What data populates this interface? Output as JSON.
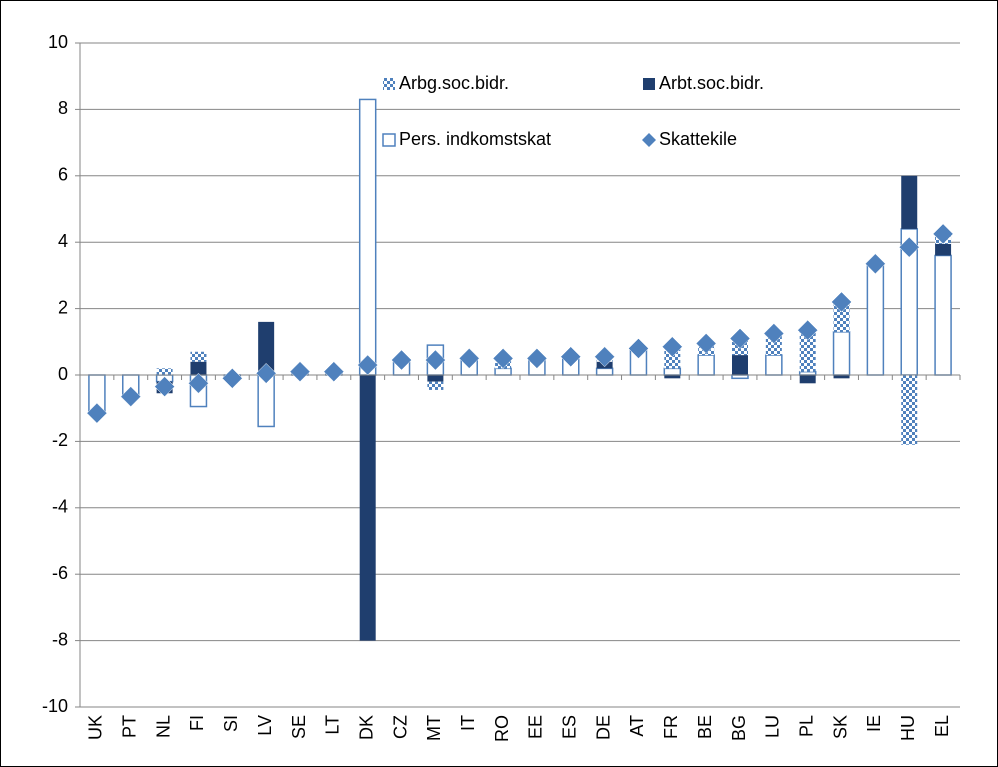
{
  "chart_data": {
    "type": "bar",
    "stacked": true,
    "categories": [
      "UK",
      "PT",
      "NL",
      "FI",
      "SI",
      "LV",
      "SE",
      "LT",
      "DK",
      "CZ",
      "MT",
      "IT",
      "RO",
      "EE",
      "ES",
      "DE",
      "AT",
      "FR",
      "BE",
      "BG",
      "LU",
      "PL",
      "SK",
      "IE",
      "HU",
      "EL"
    ],
    "series": [
      {
        "name": "Arbg.soc.bidr.",
        "color": "#4f81bd",
        "style": "checker",
        "values": [
          0,
          0,
          0.2,
          0.3,
          0,
          0,
          0,
          0,
          0,
          0,
          -0.25,
          0,
          0.3,
          0,
          0,
          0.15,
          0,
          0.7,
          0.3,
          0.5,
          0.6,
          1.2,
          0.9,
          0,
          -2.1,
          0.3
        ]
      },
      {
        "name": "Arbt.soc.bidr.",
        "color": "#1f3e6e",
        "style": "solid",
        "values": [
          0,
          0,
          -0.35,
          0.4,
          0,
          1.6,
          0,
          0,
          -8.0,
          0,
          -0.2,
          0,
          0,
          0,
          0,
          0.2,
          0,
          -0.1,
          0,
          0.6,
          0,
          -0.25,
          -0.1,
          0,
          1.6,
          0.35
        ]
      },
      {
        "name": "Pers. indkomstskat",
        "color": "#4f81bd",
        "style": "outline",
        "values": [
          -1.1,
          -0.6,
          -0.2,
          -0.95,
          -0.1,
          -1.55,
          0.1,
          0.1,
          8.3,
          0.45,
          0.9,
          0.5,
          0.2,
          0.5,
          0.55,
          0.2,
          0.8,
          0.2,
          0.6,
          -0.1,
          0.6,
          0.1,
          1.3,
          3.35,
          4.4,
          3.6
        ]
      },
      {
        "name": "Skattekile",
        "color": "#4f81bd",
        "style": "diamond",
        "values": [
          -1.15,
          -0.65,
          -0.35,
          -0.25,
          -0.1,
          0.05,
          0.1,
          0.1,
          0.3,
          0.45,
          0.45,
          0.5,
          0.5,
          0.5,
          0.55,
          0.55,
          0.8,
          0.85,
          0.95,
          1.1,
          1.25,
          1.35,
          2.2,
          3.35,
          3.85,
          4.25
        ]
      }
    ],
    "ylim": [
      -10,
      10
    ],
    "yticks": [
      -10,
      -8,
      -6,
      -4,
      -2,
      0,
      2,
      4,
      6,
      8,
      10
    ],
    "grid": true,
    "legend": "top"
  }
}
